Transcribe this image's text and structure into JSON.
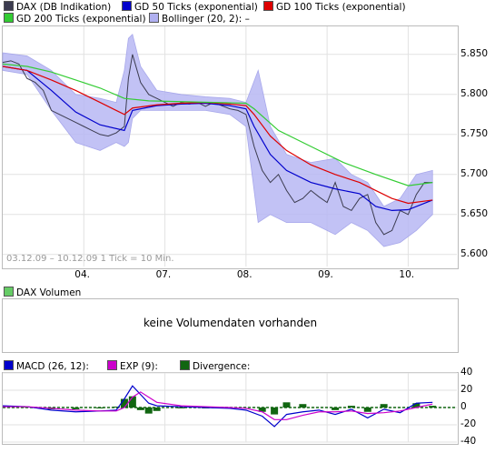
{
  "legend_main": [
    {
      "label": "DAX (DB Indikation)",
      "color": "#3c3c50"
    },
    {
      "label": "GD 50 Ticks (exponential)",
      "color": "#0000cc"
    },
    {
      "label": "GD 100 Ticks (exponential)",
      "color": "#dd0000"
    },
    {
      "label": "GD 200 Ticks (exponential)",
      "color": "#33cc33"
    },
    {
      "label": "Bollinger (20, 2):  –",
      "color": "#b0b0f0"
    }
  ],
  "range_note": "03.12.09 – 10.12.09   1 Tick = 10 Min.",
  "volume": {
    "legend": "DAX Volumen",
    "legend_color": "#66cc66",
    "message": "keine Volumendaten vorhanden"
  },
  "legend_macd": [
    {
      "label": "MACD (26, 12):",
      "color": "#0000cc"
    },
    {
      "label": "EXP (9):",
      "color": "#cc00cc"
    },
    {
      "label": "Divergence:",
      "color": "#116611"
    }
  ],
  "chart_data": [
    {
      "type": "line",
      "x_ticks": [
        "04.",
        "07.",
        "08.",
        "09.",
        "10."
      ],
      "x_tick_pos": [
        1,
        2,
        3,
        4,
        5
      ],
      "xlim": [
        0,
        5.6
      ],
      "ylim": [
        5585,
        5885
      ],
      "y_ticks": [
        5600,
        5650,
        5700,
        5750,
        5800,
        5850
      ],
      "y_tick_labels": [
        "5.600",
        "5.650",
        "5.700",
        "5.750",
        "5.800",
        "5.850"
      ],
      "series": [
        {
          "name": "DAX (DB Indikation)",
          "color": "#3c3c50",
          "x": [
            0,
            0.1,
            0.2,
            0.3,
            0.4,
            0.5,
            0.6,
            0.7,
            0.8,
            0.9,
            1.0,
            1.1,
            1.2,
            1.3,
            1.4,
            1.5,
            1.55,
            1.6,
            1.7,
            1.8,
            1.9,
            2.0,
            2.1,
            2.2,
            2.3,
            2.4,
            2.5,
            2.6,
            2.7,
            2.8,
            2.9,
            3.0,
            3.1,
            3.2,
            3.3,
            3.4,
            3.5,
            3.6,
            3.7,
            3.8,
            3.9,
            4.0,
            4.1,
            4.2,
            4.3,
            4.4,
            4.5,
            4.6,
            4.7,
            4.8,
            4.9,
            5.0,
            5.1,
            5.2,
            5.3
          ],
          "y": [
            5840,
            5842,
            5838,
            5820,
            5815,
            5805,
            5780,
            5775,
            5770,
            5765,
            5760,
            5755,
            5750,
            5748,
            5752,
            5760,
            5820,
            5850,
            5815,
            5800,
            5795,
            5790,
            5785,
            5790,
            5788,
            5790,
            5785,
            5790,
            5786,
            5782,
            5780,
            5775,
            5735,
            5705,
            5690,
            5700,
            5680,
            5665,
            5670,
            5680,
            5672,
            5665,
            5690,
            5660,
            5655,
            5670,
            5675,
            5640,
            5625,
            5630,
            5655,
            5650,
            5675,
            5690,
            5690
          ]
        },
        {
          "name": "GD 50 Ticks (exponential)",
          "color": "#0000cc",
          "x": [
            0,
            0.3,
            0.6,
            0.9,
            1.2,
            1.5,
            1.6,
            1.9,
            2.2,
            2.5,
            2.8,
            3.0,
            3.1,
            3.3,
            3.5,
            3.8,
            4.1,
            4.4,
            4.6,
            4.8,
            5.0,
            5.3
          ],
          "y": [
            5835,
            5830,
            5805,
            5778,
            5762,
            5755,
            5780,
            5786,
            5788,
            5789,
            5786,
            5782,
            5760,
            5725,
            5705,
            5690,
            5682,
            5676,
            5660,
            5655,
            5656,
            5668
          ]
        },
        {
          "name": "GD 100 Ticks (exponential)",
          "color": "#dd0000",
          "x": [
            0,
            0.3,
            0.6,
            0.9,
            1.2,
            1.5,
            1.6,
            1.9,
            2.2,
            2.5,
            2.8,
            3.0,
            3.1,
            3.3,
            3.5,
            3.8,
            4.1,
            4.4,
            4.6,
            4.8,
            5.0,
            5.3
          ],
          "y": [
            5835,
            5830,
            5818,
            5805,
            5790,
            5775,
            5783,
            5787,
            5789,
            5790,
            5788,
            5786,
            5775,
            5748,
            5730,
            5712,
            5700,
            5690,
            5680,
            5670,
            5664,
            5668
          ]
        },
        {
          "name": "GD 200 Ticks (exponential)",
          "color": "#33cc33",
          "x": [
            0,
            0.3,
            0.6,
            0.9,
            1.2,
            1.5,
            1.8,
            2.2,
            2.6,
            3.0,
            3.1,
            3.4,
            3.8,
            4.2,
            4.6,
            5.0,
            5.3
          ],
          "y": [
            5838,
            5835,
            5828,
            5818,
            5808,
            5795,
            5792,
            5791,
            5790,
            5789,
            5782,
            5755,
            5735,
            5715,
            5700,
            5686,
            5690
          ]
        }
      ],
      "bollinger": {
        "name": "Bollinger (20, 2):  –",
        "color": "#b8b8f4",
        "x": [
          0,
          0.3,
          0.6,
          0.9,
          1.2,
          1.4,
          1.5,
          1.55,
          1.6,
          1.7,
          1.9,
          2.2,
          2.5,
          2.8,
          3.0,
          3.15,
          3.3,
          3.5,
          3.8,
          4.1,
          4.3,
          4.5,
          4.7,
          4.9,
          5.1,
          5.3
        ],
        "upper": [
          5852,
          5848,
          5830,
          5800,
          5795,
          5790,
          5830,
          5870,
          5875,
          5835,
          5805,
          5800,
          5797,
          5795,
          5790,
          5830,
          5760,
          5725,
          5715,
          5720,
          5700,
          5690,
          5660,
          5670,
          5700,
          5705
        ],
        "lower": [
          5830,
          5825,
          5780,
          5740,
          5730,
          5740,
          5735,
          5740,
          5770,
          5780,
          5780,
          5780,
          5780,
          5775,
          5760,
          5640,
          5650,
          5640,
          5640,
          5625,
          5640,
          5630,
          5610,
          5615,
          5630,
          5650
        ]
      }
    },
    {
      "type": "line",
      "xlim": [
        0,
        5.6
      ],
      "ylim": [
        -40,
        40
      ],
      "y_ticks": [
        -40,
        -20,
        0,
        20,
        40
      ],
      "y_tick_labels": [
        "-40",
        "-20",
        "0",
        "20",
        "40"
      ],
      "series": [
        {
          "name": "MACD (26, 12):",
          "color": "#0000cc",
          "x": [
            0,
            0.3,
            0.6,
            0.9,
            1.2,
            1.4,
            1.5,
            1.6,
            1.7,
            1.8,
            1.9,
            2.2,
            2.5,
            2.8,
            3.0,
            3.2,
            3.35,
            3.5,
            3.7,
            3.9,
            4.1,
            4.3,
            4.5,
            4.7,
            4.9,
            5.1,
            5.3
          ],
          "y": [
            2,
            1,
            -3,
            -5,
            -4,
            -3,
            10,
            25,
            15,
            5,
            2,
            1,
            0,
            -1,
            -3,
            -10,
            -22,
            -8,
            -5,
            -3,
            -8,
            -2,
            -12,
            -2,
            -6,
            5,
            6
          ]
        },
        {
          "name": "EXP (9):",
          "color": "#cc00cc",
          "x": [
            0,
            0.3,
            0.6,
            0.9,
            1.2,
            1.4,
            1.5,
            1.6,
            1.7,
            1.8,
            1.9,
            2.2,
            2.5,
            2.8,
            3.0,
            3.2,
            3.35,
            3.5,
            3.7,
            3.9,
            4.1,
            4.3,
            4.5,
            4.7,
            4.9,
            5.1,
            5.3
          ],
          "y": [
            1,
            1,
            -1,
            -3,
            -4,
            -4,
            0,
            12,
            18,
            12,
            6,
            2,
            1,
            0,
            -1,
            -5,
            -14,
            -14,
            -9,
            -5,
            -5,
            -4,
            -7,
            -6,
            -4,
            0,
            4
          ]
        }
      ],
      "divergence": {
        "name": "Divergence:",
        "color": "#116611",
        "x": [
          0.3,
          0.6,
          0.9,
          1.2,
          1.4,
          1.5,
          1.6,
          1.7,
          1.8,
          1.9,
          2.2,
          2.5,
          3.2,
          3.35,
          3.5,
          3.7,
          4.1,
          4.3,
          4.5,
          4.7,
          5.1,
          5.3
        ],
        "y": [
          1,
          -2,
          -2,
          0,
          1,
          10,
          13,
          -3,
          -7,
          -4,
          -1,
          -1,
          -5,
          -8,
          6,
          4,
          -3,
          2,
          -5,
          4,
          5,
          2
        ]
      }
    }
  ]
}
